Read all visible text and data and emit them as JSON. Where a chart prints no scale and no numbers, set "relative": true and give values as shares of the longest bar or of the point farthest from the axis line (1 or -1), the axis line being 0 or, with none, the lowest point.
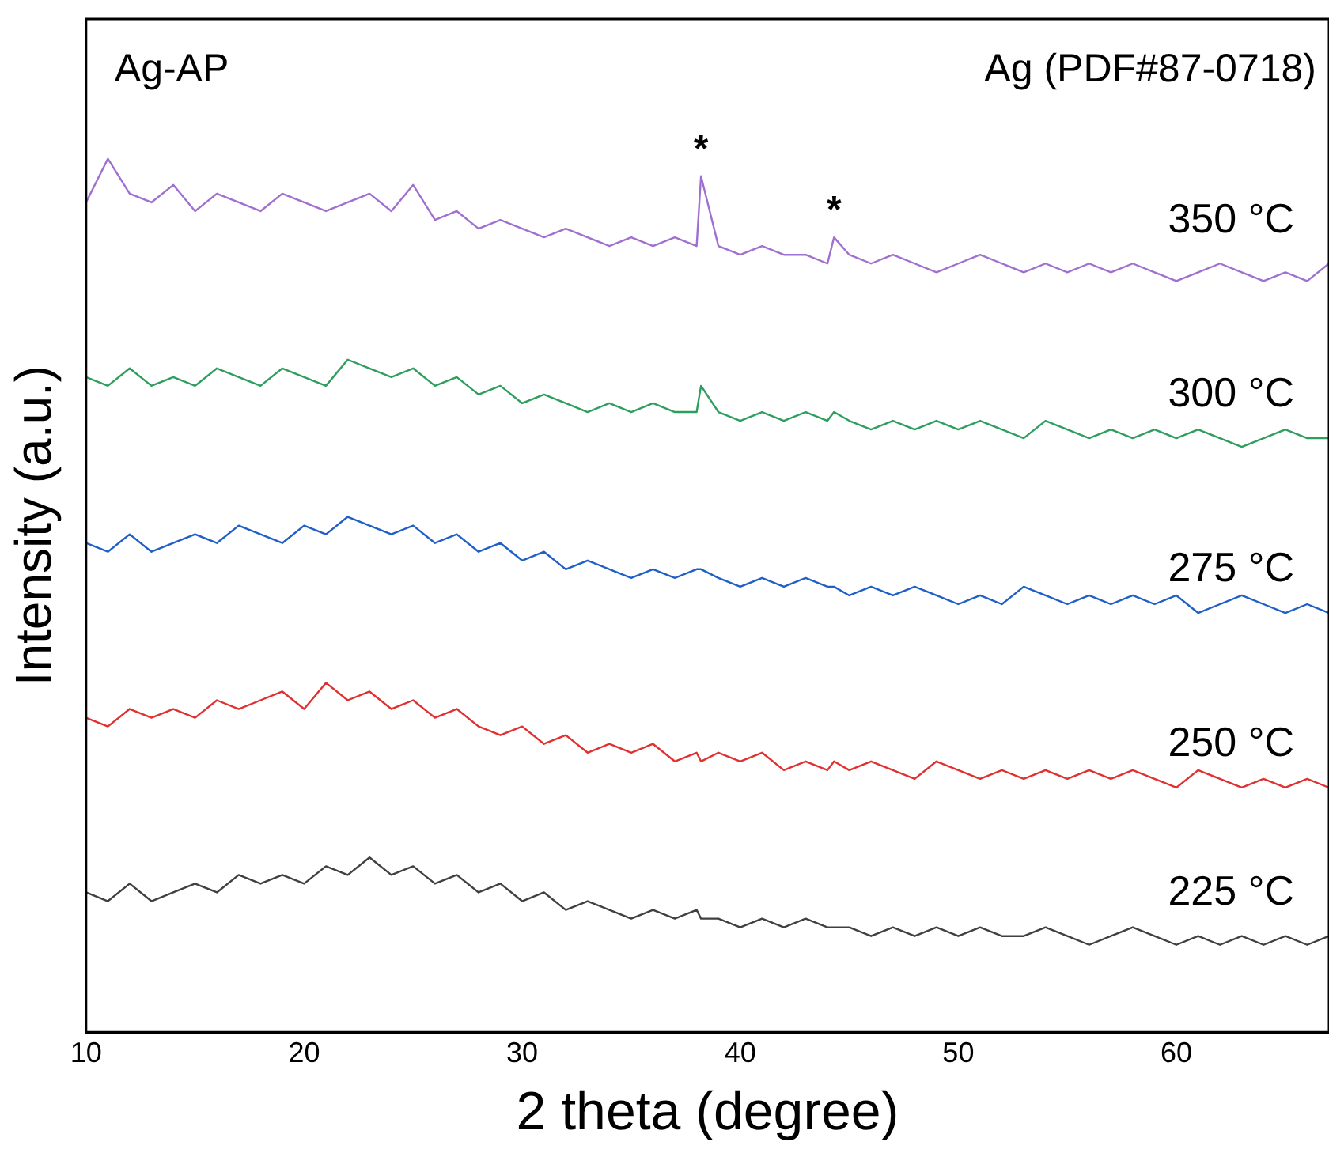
{
  "chart_data": {
    "type": "line",
    "xlabel": "2 theta (degree)",
    "ylabel": "Intensity (a.u.)",
    "relative": true,
    "x": [
      10,
      11,
      12,
      13,
      14,
      15,
      16,
      17,
      18,
      19,
      20,
      21,
      22,
      23,
      24,
      25,
      26,
      27,
      28,
      29,
      30,
      31,
      32,
      33,
      34,
      35,
      36,
      37,
      38,
      38.2,
      39,
      40,
      41,
      42,
      43,
      44,
      44.3,
      45,
      46,
      47,
      48,
      49,
      50,
      51,
      52,
      53,
      54,
      55,
      56,
      57,
      58,
      59,
      60,
      61,
      62,
      63,
      64,
      65,
      66,
      67
    ],
    "xlim": [
      10,
      67
    ],
    "xticks": [
      10,
      20,
      30,
      40,
      50,
      60
    ],
    "grid": false,
    "legend": false,
    "marker": "none",
    "line_style": "solid",
    "series": [
      {
        "name": "225 °C",
        "color": "#404040",
        "values": [
          0.16,
          0.15,
          0.17,
          0.15,
          0.16,
          0.17,
          0.16,
          0.18,
          0.17,
          0.18,
          0.17,
          0.19,
          0.18,
          0.2,
          0.18,
          0.19,
          0.17,
          0.18,
          0.16,
          0.17,
          0.15,
          0.16,
          0.14,
          0.15,
          0.14,
          0.13,
          0.14,
          0.13,
          0.14,
          0.13,
          0.13,
          0.12,
          0.13,
          0.12,
          0.13,
          0.12,
          0.12,
          0.12,
          0.11,
          0.12,
          0.11,
          0.12,
          0.11,
          0.12,
          0.11,
          0.11,
          0.12,
          0.11,
          0.1,
          0.11,
          0.12,
          0.11,
          0.1,
          0.11,
          0.1,
          0.11,
          0.1,
          0.11,
          0.1,
          0.11
        ]
      },
      {
        "name": "250 °C",
        "color": "#e03030",
        "values": [
          0.36,
          0.35,
          0.37,
          0.36,
          0.37,
          0.36,
          0.38,
          0.37,
          0.38,
          0.39,
          0.37,
          0.4,
          0.38,
          0.39,
          0.37,
          0.38,
          0.36,
          0.37,
          0.35,
          0.34,
          0.35,
          0.33,
          0.34,
          0.32,
          0.33,
          0.32,
          0.33,
          0.31,
          0.32,
          0.31,
          0.32,
          0.31,
          0.32,
          0.3,
          0.31,
          0.3,
          0.31,
          0.3,
          0.31,
          0.3,
          0.29,
          0.31,
          0.3,
          0.29,
          0.3,
          0.29,
          0.3,
          0.29,
          0.3,
          0.29,
          0.3,
          0.29,
          0.28,
          0.3,
          0.29,
          0.28,
          0.29,
          0.28,
          0.29,
          0.28
        ]
      },
      {
        "name": "275 °C",
        "color": "#1f5fc8",
        "values": [
          0.56,
          0.55,
          0.57,
          0.55,
          0.56,
          0.57,
          0.56,
          0.58,
          0.57,
          0.56,
          0.58,
          0.57,
          0.59,
          0.58,
          0.57,
          0.58,
          0.56,
          0.57,
          0.55,
          0.56,
          0.54,
          0.55,
          0.53,
          0.54,
          0.53,
          0.52,
          0.53,
          0.52,
          0.53,
          0.53,
          0.52,
          0.51,
          0.52,
          0.51,
          0.52,
          0.51,
          0.51,
          0.5,
          0.51,
          0.5,
          0.51,
          0.5,
          0.49,
          0.5,
          0.49,
          0.51,
          0.5,
          0.49,
          0.5,
          0.49,
          0.5,
          0.49,
          0.5,
          0.48,
          0.49,
          0.5,
          0.49,
          0.48,
          0.49,
          0.48
        ]
      },
      {
        "name": "300 °C",
        "color": "#2e9e5e",
        "values": [
          0.75,
          0.74,
          0.76,
          0.74,
          0.75,
          0.74,
          0.76,
          0.75,
          0.74,
          0.76,
          0.75,
          0.74,
          0.77,
          0.76,
          0.75,
          0.76,
          0.74,
          0.75,
          0.73,
          0.74,
          0.72,
          0.73,
          0.72,
          0.71,
          0.72,
          0.71,
          0.72,
          0.71,
          0.71,
          0.74,
          0.71,
          0.7,
          0.71,
          0.7,
          0.71,
          0.7,
          0.71,
          0.7,
          0.69,
          0.7,
          0.69,
          0.7,
          0.69,
          0.7,
          0.69,
          0.68,
          0.7,
          0.69,
          0.68,
          0.69,
          0.68,
          0.69,
          0.68,
          0.69,
          0.68,
          0.67,
          0.68,
          0.69,
          0.68,
          0.68
        ]
      },
      {
        "name": "350 °C",
        "color": "#a070d0",
        "values": [
          0.95,
          1.0,
          0.96,
          0.95,
          0.97,
          0.94,
          0.96,
          0.95,
          0.94,
          0.96,
          0.95,
          0.94,
          0.95,
          0.96,
          0.94,
          0.97,
          0.93,
          0.94,
          0.92,
          0.93,
          0.92,
          0.91,
          0.92,
          0.91,
          0.9,
          0.91,
          0.9,
          0.91,
          0.9,
          0.98,
          0.9,
          0.89,
          0.9,
          0.89,
          0.89,
          0.88,
          0.91,
          0.89,
          0.88,
          0.89,
          0.88,
          0.87,
          0.88,
          0.89,
          0.88,
          0.87,
          0.88,
          0.87,
          0.88,
          0.87,
          0.88,
          0.87,
          0.86,
          0.87,
          0.88,
          0.87,
          0.86,
          0.87,
          0.86,
          0.88
        ]
      }
    ],
    "annotations": [
      "Ag-AP",
      "Ag (PDF#87-0718)",
      {
        "text": "*",
        "x": 38.2,
        "y": 0.98
      },
      {
        "text": "*",
        "x": 44.3,
        "y": 0.91
      }
    ]
  }
}
